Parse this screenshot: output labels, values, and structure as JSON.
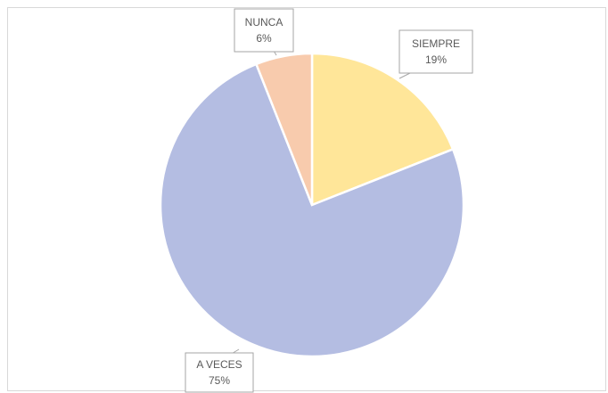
{
  "chart_data": {
    "type": "pie",
    "title": "",
    "start_angle_deg": 0,
    "direction": "clockwise",
    "legend": "none",
    "slices": [
      {
        "label": "SIEMPRE",
        "value": 19,
        "display": "19%",
        "color": "#FFE699"
      },
      {
        "label": "A VECES",
        "value": 75,
        "display": "75%",
        "color": "#B4BDE2"
      },
      {
        "label": "NUNCA",
        "value": 6,
        "display": "6%",
        "color": "#F8CBAD"
      }
    ]
  }
}
